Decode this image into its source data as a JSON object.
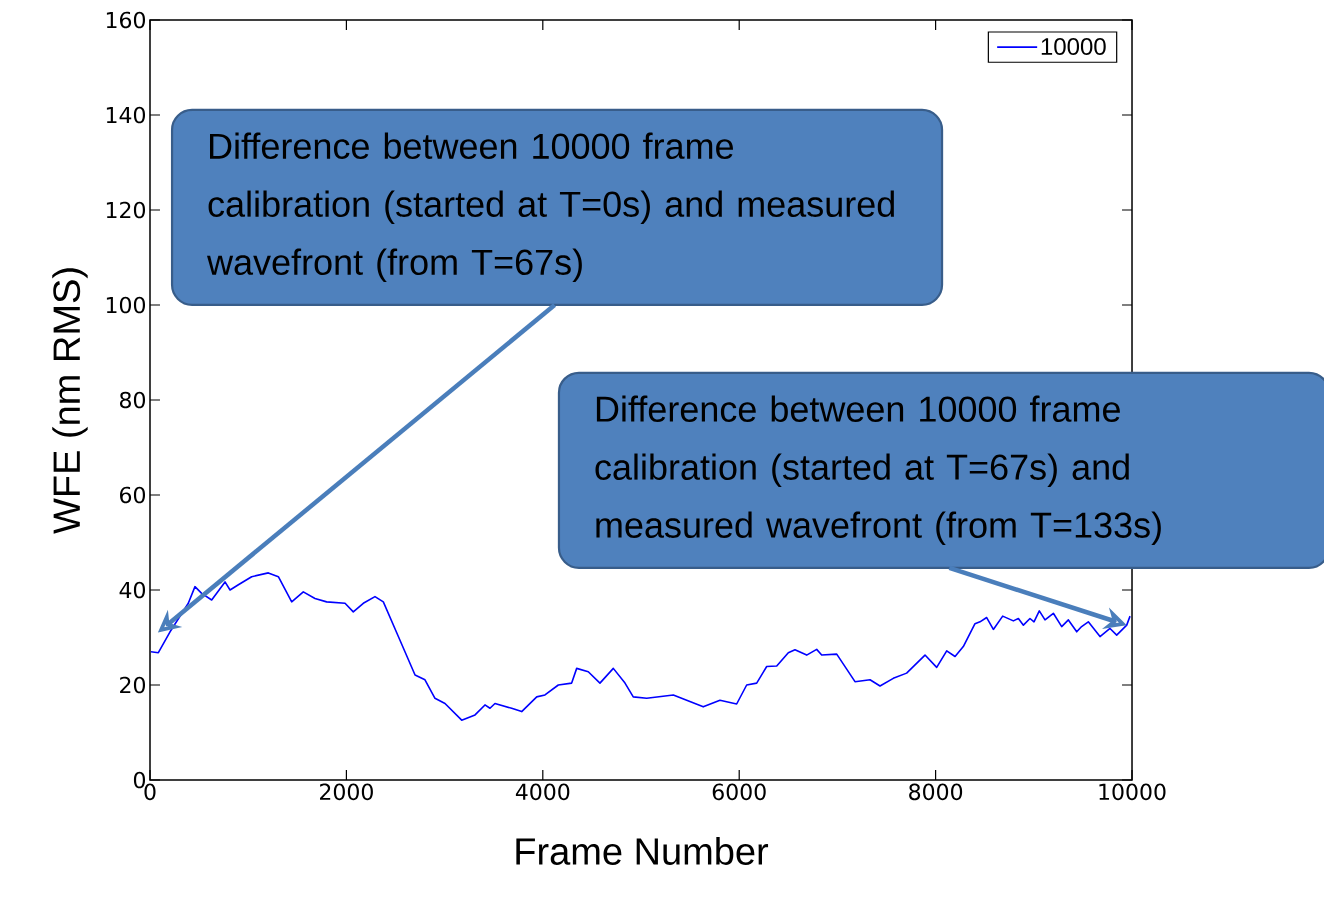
{
  "chart_data": {
    "type": "line",
    "xlabel": "Frame Number",
    "ylabel": "WFE (nm RMS)",
    "xlim": [
      0,
      10000
    ],
    "ylim": [
      0,
      160
    ],
    "xticks": [
      0,
      2000,
      4000,
      6000,
      8000,
      10000
    ],
    "yticks": [
      0,
      20,
      40,
      60,
      80,
      100,
      120,
      140,
      160
    ],
    "grid": false,
    "legend": "top right",
    "marker": "none",
    "line_style": "solid",
    "x": [
      10,
      85,
      204,
      390,
      458,
      526,
      628,
      764,
      815,
      900,
      1035,
      1205,
      1307,
      1443,
      1561,
      1680,
      1799,
      1986,
      2070,
      2172,
      2291,
      2376,
      2529,
      2699,
      2800,
      2902,
      3004,
      3174,
      3310,
      3411,
      3462,
      3513,
      3683,
      3785,
      3938,
      4022,
      4158,
      4294,
      4345,
      4463,
      4582,
      4718,
      4837,
      4921,
      5058,
      5329,
      5634,
      5804,
      5974,
      6076,
      6178,
      6280,
      6382,
      6500,
      6568,
      6687,
      6789,
      6840,
      6993,
      7179,
      7332,
      7434,
      7569,
      7705,
      7892,
      8011,
      8113,
      8198,
      8282,
      8401,
      8452,
      8520,
      8588,
      8683,
      8792,
      8843,
      8894,
      8961,
      9002,
      9056,
      9114,
      9199,
      9284,
      9352,
      9437,
      9487,
      9555,
      9674,
      9776,
      9844,
      9946,
      9980
    ],
    "series": [
      {
        "name": "10000",
        "color": "#0000ff",
        "values": [
          27.0,
          26.8,
          31.2,
          37.2,
          40.7,
          39.3,
          37.9,
          41.7,
          40.0,
          41.1,
          42.8,
          43.6,
          42.8,
          37.5,
          39.6,
          38.2,
          37.5,
          37.2,
          35.4,
          37.2,
          38.6,
          37.5,
          30.2,
          22.1,
          21.1,
          17.2,
          16.1,
          12.6,
          13.7,
          15.8,
          15.1,
          16.1,
          15.1,
          14.4,
          17.5,
          17.9,
          20.0,
          20.4,
          23.5,
          22.8,
          20.4,
          23.5,
          20.4,
          17.5,
          17.2,
          17.9,
          15.4,
          16.8,
          16.0,
          20.0,
          20.4,
          23.9,
          24.0,
          26.8,
          27.4,
          26.3,
          27.5,
          26.3,
          26.5,
          20.7,
          21.1,
          19.8,
          21.4,
          22.5,
          26.3,
          23.7,
          27.2,
          26.0,
          28.1,
          32.9,
          33.3,
          34.2,
          31.7,
          34.5,
          33.5,
          34.0,
          32.6,
          34.0,
          33.3,
          35.6,
          33.7,
          35.1,
          32.3,
          33.7,
          31.2,
          32.3,
          33.3,
          30.2,
          31.9,
          30.5,
          32.6,
          34.5
        ]
      }
    ],
    "annotations": [
      "Difference between 10000 frame calibration (started at T=0s) and measured wavefront (from T=67s)",
      {
        "text": "Difference between 10000 frame calibration (started at T=67s) and measured wavefront (from T=133s)",
        "x": 9946,
        "y": 32.6
      }
    ]
  }
}
